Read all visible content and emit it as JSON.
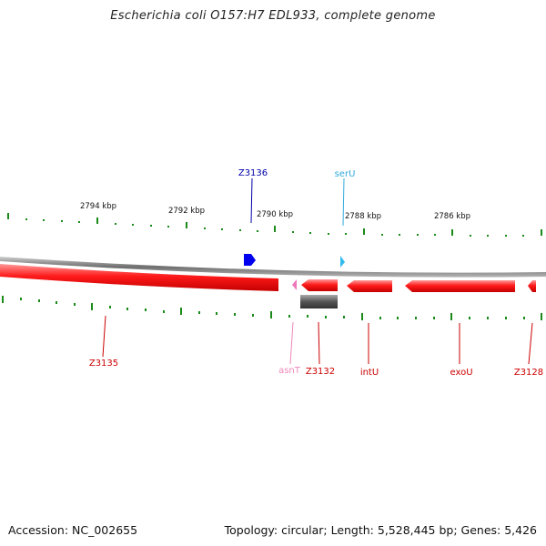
{
  "title": "Escherichia coli O157:H7 EDL933, complete genome",
  "accession": "Accession: NC_002655",
  "topology": "Topology: circular; Length: 5,528,445 bp; Genes: 5,426",
  "colors": {
    "tick": "#1a8a1a",
    "backbone": "#8a8a8a",
    "gene_red": "#ff0000",
    "gene_blue": "#0000ee",
    "gene_cyan": "#33bbee",
    "gene_pink": "#ee77bb",
    "gene_gray": "#555555",
    "label_red": "#cc0000",
    "label_blue": "#0000aa",
    "label_cyan": "#33aadd",
    "label_pink": "#ee88bb"
  },
  "scale_labels": [
    "2794 kbp",
    "2792 kbp",
    "2790 kbp",
    "2788 kbp",
    "2786 kbp"
  ],
  "gene_labels": {
    "z3136": "Z3136",
    "seru": "serU",
    "z3135": "Z3135",
    "asnt": "asnT",
    "z3132": "Z3132",
    "intu": "intU",
    "exou": "exoU",
    "z3128": "Z3128"
  }
}
